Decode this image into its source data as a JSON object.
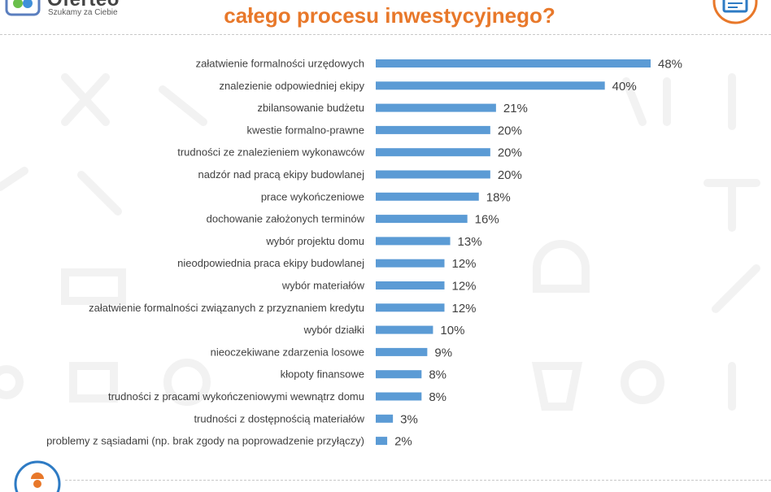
{
  "header": {
    "brand": "Oferteo",
    "tagline": "Szukamy za Ciebie",
    "title": "całego procesu inwestycyjnego?"
  },
  "colors": {
    "bar": "#5b9bd5",
    "title": "#e8782a",
    "text": "#404040",
    "icon_blue": "#2e7bc4",
    "icon_orange": "#e8782a"
  },
  "icons": [
    "logo-icon",
    "document-icon",
    "worker-icon"
  ],
  "chart_data": {
    "type": "bar",
    "orientation": "horizontal",
    "title": "całego procesu inwestycyjnego?",
    "xlim": [
      0,
      48
    ],
    "grid": false,
    "legend": "none",
    "categories": [
      "załatwienie formalności urzędowych",
      "znalezienie odpowiedniej ekipy",
      "zbilansowanie budżetu",
      "kwestie formalno-prawne",
      "trudności ze znalezieniem wykonawców",
      "nadzór nad pracą ekipy budowlanej",
      "prace wykończeniowe",
      "dochowanie założonych terminów",
      "wybór projektu domu",
      "nieodpowiednia praca ekipy budowlanej",
      "wybór materiałów",
      "załatwienie formalności związanych z przyznaniem kredytu",
      "wybór działki",
      "nieoczekiwane zdarzenia losowe",
      "kłopoty finansowe",
      "trudności z pracami wykończeniowymi wewnątrz domu",
      "trudności z dostępnością materiałów",
      "problemy z sąsiadami (np. brak zgody na poprowadzenie przyłączy)"
    ],
    "values": [
      48,
      40,
      21,
      20,
      20,
      20,
      18,
      16,
      13,
      12,
      12,
      12,
      10,
      9,
      8,
      8,
      3,
      2
    ],
    "value_labels": [
      "48%",
      "40%",
      "21%",
      "20%",
      "20%",
      "20%",
      "18%",
      "16%",
      "13%",
      "12%",
      "12%",
      "12%",
      "10%",
      "9%",
      "8%",
      "8%",
      "3%",
      "2%"
    ]
  }
}
